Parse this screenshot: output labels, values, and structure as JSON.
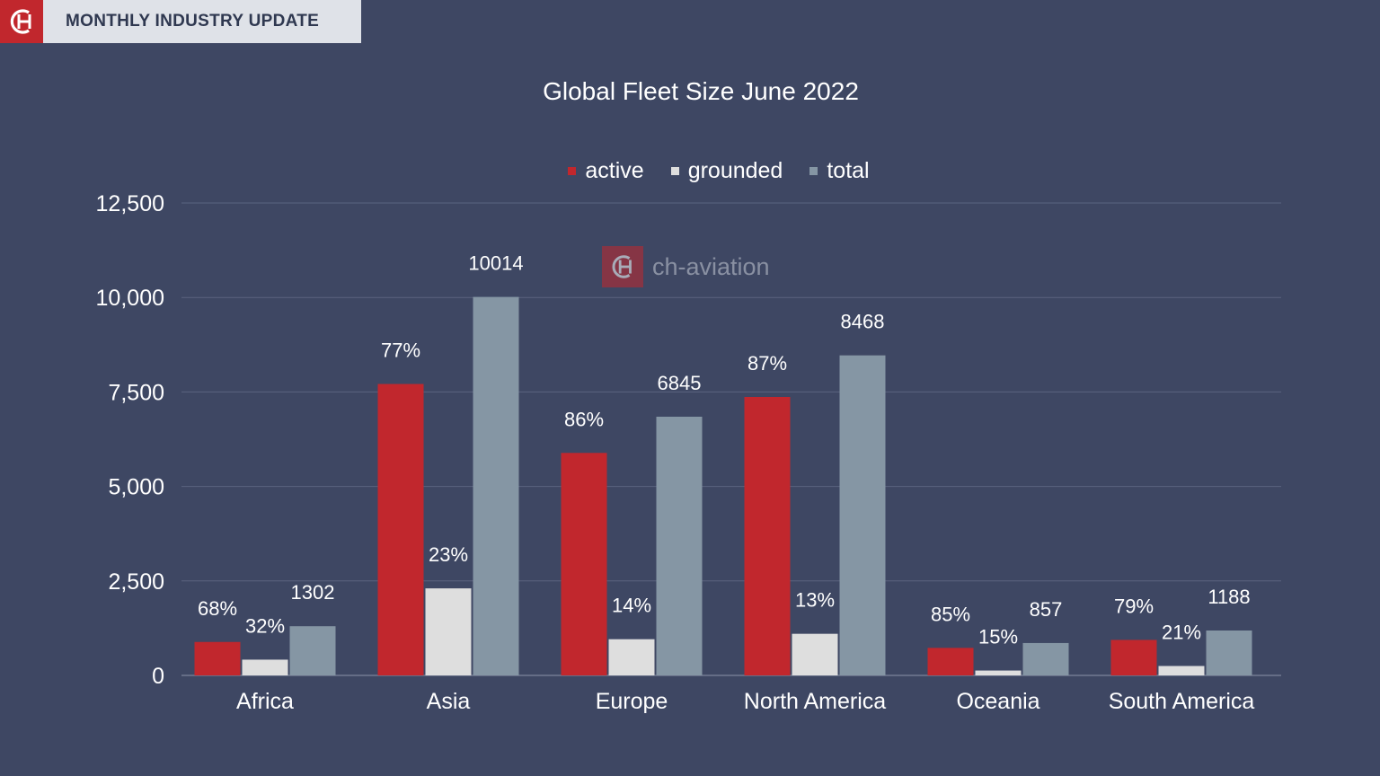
{
  "header": {
    "banner_title": "MONTHLY INDUSTRY UPDATE",
    "logo_icon": "ch-logo-icon"
  },
  "watermark": {
    "text": "ch-aviation"
  },
  "colors": {
    "background": "#3e4763",
    "active": "#c1272d",
    "grounded": "#dedede",
    "total": "#8596a4",
    "gridline": "#5b6480",
    "text": "#ffffff"
  },
  "chart_data": {
    "type": "bar",
    "title": "Global Fleet Size June 2022",
    "xlabel": "",
    "ylabel": "",
    "ylim": [
      0,
      12500
    ],
    "yticks": [
      0,
      2500,
      5000,
      7500,
      10000,
      12500
    ],
    "ytick_labels": [
      "0",
      "2,500",
      "5,000",
      "7,500",
      "10,000",
      "12,500"
    ],
    "grid": true,
    "legend_position": "top-center",
    "categories": [
      "Africa",
      "Asia",
      "Europe",
      "North America",
      "Oceania",
      "South America"
    ],
    "series": [
      {
        "name": "active",
        "values": [
          885,
          7711,
          5887,
          7367,
          728,
          939
        ],
        "labels": [
          "68%",
          "77%",
          "86%",
          "87%",
          "85%",
          "79%"
        ]
      },
      {
        "name": "grounded",
        "values": [
          417,
          2303,
          958,
          1101,
          129,
          249
        ],
        "labels": [
          "32%",
          "23%",
          "14%",
          "13%",
          "15%",
          "21%"
        ]
      },
      {
        "name": "total",
        "values": [
          1302,
          10014,
          6845,
          8468,
          857,
          1188
        ],
        "labels": [
          "1302",
          "10014",
          "6845",
          "8468",
          "857",
          "1188"
        ]
      }
    ]
  }
}
